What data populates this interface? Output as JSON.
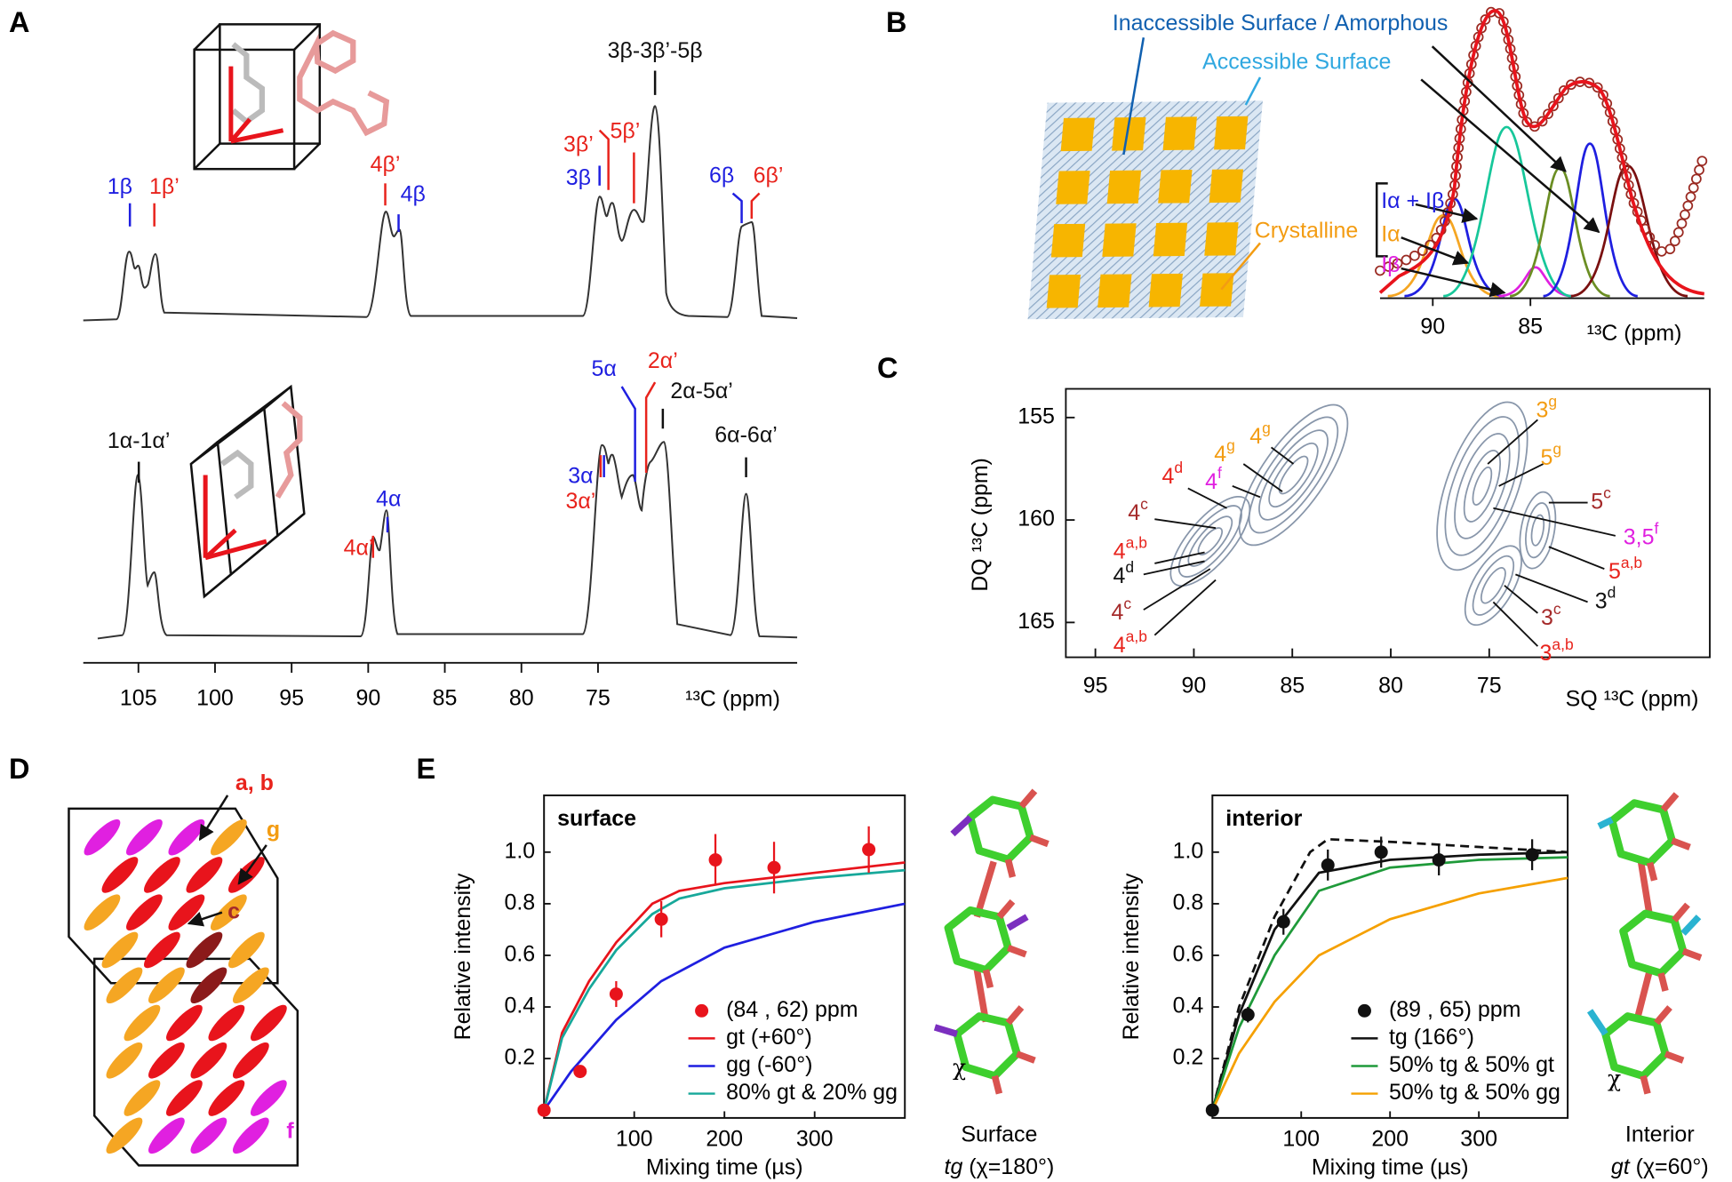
{
  "panel_letters": [
    "A",
    "B",
    "C",
    "D",
    "E"
  ],
  "panel_a": {
    "top_labels": [
      "1β",
      "1β’",
      "4β’",
      "4β",
      "3β",
      "3β’",
      "5β’",
      "3β-3β’-5β",
      "6β",
      "6β’"
    ],
    "bottom_labels": [
      "1α-1α’",
      "4α’",
      "4α",
      "3α",
      "3α’",
      "5α",
      "2α’",
      "2α-5α’",
      "6α-6α’"
    ],
    "x_axis": {
      "label": "¹³C (ppm)",
      "xlim": [
        108.6,
        62
      ],
      "xticks": [
        105,
        100,
        95,
        90,
        85,
        80,
        75
      ]
    }
  },
  "panel_b": {
    "labels": [
      "Inaccessible Surface / Amorphous",
      "Accessible Surface",
      "Crystalline",
      "Iα + Iβ",
      "Iα",
      "Iβ"
    ],
    "x_axis": {
      "label": "¹³C (ppm)",
      "xlim": [
        92.7,
        76.1
      ],
      "xticks": [
        90,
        85
      ]
    }
  },
  "panel_c": {
    "left_labels": [
      {
        "base": "4",
        "sup": "d"
      },
      {
        "base": "4",
        "sup": "c"
      },
      {
        "base": "4",
        "sup": "a,b"
      },
      {
        "base": "4",
        "sup": "d"
      },
      {
        "base": "4",
        "sup": "c"
      },
      {
        "base": "4",
        "sup": "a,b"
      },
      {
        "base": "4",
        "sup": "g"
      },
      {
        "base": "4",
        "sup": "g"
      },
      {
        "base": "4",
        "sup": "f"
      }
    ],
    "right_labels": [
      {
        "base": "3",
        "sup": "g"
      },
      {
        "base": "5",
        "sup": "g"
      },
      {
        "base": "5",
        "sup": "c"
      },
      {
        "base": "3,5",
        "sup": "f"
      },
      {
        "base": "5",
        "sup": "a,b"
      },
      {
        "base": "3",
        "sup": "d"
      },
      {
        "base": "3",
        "sup": "c"
      },
      {
        "base": "3",
        "sup": "a,b"
      }
    ],
    "x_axis": {
      "label": "SQ ¹³C (ppm)",
      "xlim": [
        96.5,
        63.8
      ],
      "xticks": [
        95,
        90,
        85,
        80,
        75
      ]
    },
    "y_axis": {
      "label": "DQ ¹³C (ppm)",
      "ylim": [
        153.6,
        166.7
      ],
      "yticks": [
        155,
        160,
        165
      ]
    }
  },
  "panel_d": {
    "labels": [
      "a, b",
      "g",
      "c",
      "f"
    ]
  },
  "panel_e": {
    "surface_molecule": {
      "chi": "χ",
      "caption": "Surface",
      "conformer": "tg",
      "angle": "(χ=180°)"
    },
    "interior_molecule": {
      "chi": "χ",
      "caption": "Interior",
      "conformer": "gt",
      "angle": "(χ=60°)"
    }
  },
  "chart_data": [
    {
      "type": "line",
      "title": "surface",
      "xlabel": "Mixing time (µs)",
      "ylabel": "Relative intensity",
      "xlim": [
        0,
        400
      ],
      "ylim": [
        -0.03,
        1.22
      ],
      "xticks": [
        100,
        200,
        300
      ],
      "yticks": [
        0.2,
        0.4,
        0.6,
        0.8,
        {
          "value": 1,
          "label": "1.0"
        }
      ],
      "legend": "lower right",
      "points": {
        "name": "(84 , 62) ppm",
        "color": "#e8141c",
        "x": [
          0,
          40,
          80,
          130,
          190,
          255,
          360
        ],
        "values": [
          0,
          0.15,
          0.45,
          0.74,
          0.97,
          0.94,
          1.01
        ],
        "errors": [
          0.01,
          0.02,
          0.05,
          0.07,
          0.1,
          0.1,
          0.09
        ]
      },
      "series": [
        {
          "name": "gt (+60°)",
          "color": "#e8141c",
          "x": [
            0,
            20,
            50,
            80,
            120,
            150,
            200,
            300,
            400
          ],
          "values": [
            0,
            0.3,
            0.5,
            0.65,
            0.8,
            0.85,
            0.88,
            0.92,
            0.96
          ]
        },
        {
          "name": "gg (-60°)",
          "color": "#1f1fe0",
          "x": [
            0,
            30,
            80,
            130,
            200,
            300,
            400
          ],
          "values": [
            0,
            0.15,
            0.35,
            0.5,
            0.63,
            0.73,
            0.8
          ]
        },
        {
          "name": "80% gt & 20% gg",
          "color": "#17a89a",
          "x": [
            0,
            20,
            50,
            80,
            120,
            150,
            200,
            300,
            400
          ],
          "values": [
            0,
            0.28,
            0.47,
            0.62,
            0.76,
            0.82,
            0.86,
            0.9,
            0.93
          ]
        }
      ]
    },
    {
      "type": "line",
      "title": "interior",
      "xlabel": "Mixing time (µs)",
      "ylabel": "Relative intensity",
      "xlim": [
        0,
        400
      ],
      "ylim": [
        -0.03,
        1.22
      ],
      "xticks": [
        100,
        200,
        300
      ],
      "yticks": [
        0.2,
        0.4,
        0.6,
        0.8,
        {
          "value": 1,
          "label": "1.0"
        }
      ],
      "legend": "lower right",
      "points": {
        "name": "(89 , 65) ppm",
        "color": "#111111",
        "x": [
          0,
          40,
          80,
          130,
          190,
          255,
          360
        ],
        "values": [
          0,
          0.37,
          0.73,
          0.95,
          1.0,
          0.97,
          0.99
        ],
        "errors": [
          0.01,
          0.03,
          0.05,
          0.06,
          0.06,
          0.06,
          0.06
        ]
      },
      "series": [
        {
          "color": "#111111",
          "dash": true,
          "x": [
            0,
            30,
            70,
            110,
            130,
            200,
            300,
            400
          ],
          "values": [
            0,
            0.4,
            0.75,
            1.0,
            1.05,
            1.04,
            1.02,
            1.0
          ]
        },
        {
          "name": "tg (166°)",
          "color": "#111111",
          "x": [
            0,
            30,
            70,
            120,
            200,
            300,
            400
          ],
          "values": [
            0,
            0.37,
            0.7,
            0.92,
            0.97,
            0.99,
            1.0
          ]
        },
        {
          "name": "50% tg & 50% gt",
          "color": "#1f9a3a",
          "x": [
            0,
            30,
            70,
            120,
            200,
            300,
            400
          ],
          "values": [
            0,
            0.32,
            0.6,
            0.85,
            0.94,
            0.97,
            0.98
          ]
        },
        {
          "name": "50% tg & 50% gg",
          "color": "#f5a000",
          "x": [
            0,
            30,
            70,
            120,
            200,
            300,
            400
          ],
          "values": [
            0,
            0.22,
            0.42,
            0.6,
            0.74,
            0.84,
            0.9
          ]
        }
      ]
    }
  ]
}
